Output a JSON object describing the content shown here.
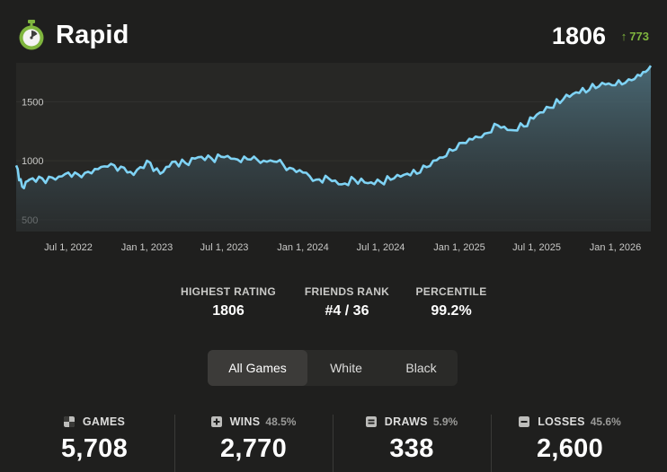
{
  "header": {
    "title": "Rapid",
    "rating": "1806",
    "delta": "773",
    "delta_color": "#7fb53e"
  },
  "chart_data": {
    "type": "area",
    "y_ticks": [
      "1500",
      "1000",
      "500"
    ],
    "x_ticks": [
      "Jul 1, 2022",
      "Jan 1, 2023",
      "Jul 1, 2023",
      "Jan 1, 2024",
      "Jul 1, 2024",
      "Jan 1, 2025",
      "Jul 1, 2025",
      "Jan 1, 2026"
    ],
    "ylim": [
      400,
      1830
    ],
    "line_color": "#7fd3f5",
    "series": [
      {
        "values": [
          [
            "2022-03-01",
            960
          ],
          [
            "2022-03-15",
            780
          ],
          [
            "2022-04-01",
            840
          ],
          [
            "2022-05-01",
            850
          ],
          [
            "2022-06-01",
            840
          ],
          [
            "2022-07-01",
            900
          ],
          [
            "2022-08-01",
            860
          ],
          [
            "2022-09-01",
            930
          ],
          [
            "2022-10-01",
            950
          ],
          [
            "2022-11-01",
            950
          ],
          [
            "2022-12-01",
            880
          ],
          [
            "2023-01-01",
            1000
          ],
          [
            "2023-02-01",
            890
          ],
          [
            "2023-03-01",
            990
          ],
          [
            "2023-04-01",
            980
          ],
          [
            "2023-05-01",
            1030
          ],
          [
            "2023-06-01",
            1020
          ],
          [
            "2023-07-01",
            1030
          ],
          [
            "2023-08-01",
            1010
          ],
          [
            "2023-09-01",
            1010
          ],
          [
            "2023-10-01",
            1000
          ],
          [
            "2023-11-01",
            990
          ],
          [
            "2023-12-01",
            940
          ],
          [
            "2024-01-01",
            900
          ],
          [
            "2024-02-01",
            840
          ],
          [
            "2024-03-01",
            850
          ],
          [
            "2024-04-01",
            800
          ],
          [
            "2024-05-01",
            840
          ],
          [
            "2024-06-01",
            810
          ],
          [
            "2024-07-01",
            820
          ],
          [
            "2024-08-01",
            850
          ],
          [
            "2024-09-01",
            890
          ],
          [
            "2024-10-01",
            900
          ],
          [
            "2024-11-01",
            1000
          ],
          [
            "2024-12-01",
            1040
          ],
          [
            "2025-01-01",
            1150
          ],
          [
            "2025-02-01",
            1180
          ],
          [
            "2025-03-01",
            1230
          ],
          [
            "2025-04-01",
            1300
          ],
          [
            "2025-05-01",
            1260
          ],
          [
            "2025-06-01",
            1290
          ],
          [
            "2025-07-01",
            1390
          ],
          [
            "2025-08-01",
            1450
          ],
          [
            "2025-09-01",
            1520
          ],
          [
            "2025-10-01",
            1580
          ],
          [
            "2025-11-01",
            1600
          ],
          [
            "2025-12-01",
            1660
          ],
          [
            "2026-01-01",
            1640
          ],
          [
            "2026-02-01",
            1690
          ],
          [
            "2026-03-01",
            1720
          ],
          [
            "2026-03-25",
            1806
          ]
        ]
      }
    ]
  },
  "stats": {
    "highest_label": "HIGHEST RATING",
    "highest_value": "1806",
    "friends_label": "FRIENDS RANK",
    "friends_value": "#4 / 36",
    "percentile_label": "PERCENTILE",
    "percentile_value": "99.2%"
  },
  "filters": {
    "all": "All Games",
    "white": "White",
    "black": "Black",
    "selected": "All Games"
  },
  "totals": {
    "games_label": "GAMES",
    "games_value": "5,708",
    "wins_label": "WINS",
    "wins_pct": "48.5%",
    "wins_value": "2,770",
    "draws_label": "DRAWS",
    "draws_pct": "5.9%",
    "draws_value": "338",
    "losses_label": "LOSSES",
    "losses_pct": "45.6%",
    "losses_value": "2,600"
  }
}
